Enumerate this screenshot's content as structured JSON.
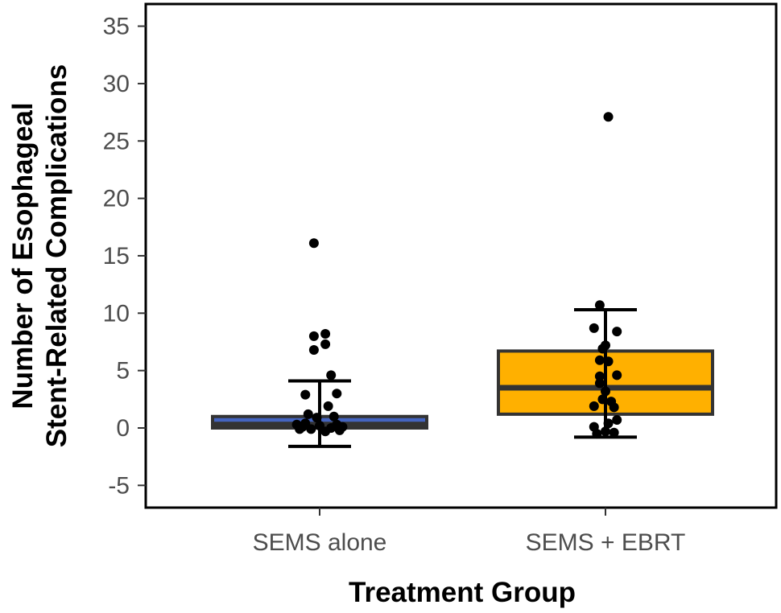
{
  "chart_data": {
    "type": "boxplot",
    "title": "",
    "xlabel": "Treatment Group",
    "ylabel": [
      "Number of Esophageal",
      "Stent-Related Complications"
    ],
    "ylim": [
      -6.8,
      37
    ],
    "yticks": [
      -5,
      0,
      5,
      10,
      15,
      20,
      25,
      30,
      35
    ],
    "grid": false,
    "legend": "none",
    "categories": [
      "SEMS alone",
      "SEMS + EBRT"
    ],
    "groups": [
      {
        "name": "SEMS alone",
        "color": "#4464c0",
        "box": {
          "q1": 0,
          "median": 0.3,
          "q3": 1,
          "whisker_low": -1.6,
          "whisker_high": 4.1
        },
        "points": [
          {
            "x": -0.02,
            "y": 16.1
          },
          {
            "x": 0.02,
            "y": 8.2
          },
          {
            "x": -0.02,
            "y": 8.0
          },
          {
            "x": 0.02,
            "y": 7.3
          },
          {
            "x": -0.02,
            "y": 6.8
          },
          {
            "x": 0.04,
            "y": 4.6
          },
          {
            "x": 0.06,
            "y": 3.0
          },
          {
            "x": -0.05,
            "y": 2.9
          },
          {
            "x": 0.03,
            "y": 1.9
          },
          {
            "x": -0.04,
            "y": 1.2
          },
          {
            "x": 0.05,
            "y": 1.0
          },
          {
            "x": -0.01,
            "y": 0.9
          },
          {
            "x": -0.05,
            "y": 0.4
          },
          {
            "x": 0.06,
            "y": 0.3
          },
          {
            "x": 0.0,
            "y": 0.2
          },
          {
            "x": -0.06,
            "y": 0.1
          },
          {
            "x": 0.04,
            "y": 0.0
          },
          {
            "x": -0.03,
            "y": -0.1
          },
          {
            "x": 0.07,
            "y": -0.2
          },
          {
            "x": -0.07,
            "y": -0.1
          },
          {
            "x": 0.02,
            "y": -0.3
          },
          {
            "x": 0.08,
            "y": 0.1
          },
          {
            "x": -0.08,
            "y": 0.3
          }
        ]
      },
      {
        "name": "SEMS + EBRT",
        "color": "#ffb000",
        "box": {
          "q1": 1.2,
          "median": 3.5,
          "q3": 6.7,
          "whisker_low": -0.8,
          "whisker_high": 10.3
        },
        "points": [
          {
            "x": 0.01,
            "y": 27.1
          },
          {
            "x": -0.02,
            "y": 10.7
          },
          {
            "x": -0.04,
            "y": 8.7
          },
          {
            "x": 0.04,
            "y": 8.4
          },
          {
            "x": 0.0,
            "y": 7.2
          },
          {
            "x": -0.01,
            "y": 6.9
          },
          {
            "x": -0.02,
            "y": 5.9
          },
          {
            "x": 0.01,
            "y": 5.8
          },
          {
            "x": -0.02,
            "y": 4.5
          },
          {
            "x": 0.04,
            "y": 4.6
          },
          {
            "x": -0.02,
            "y": 3.9
          },
          {
            "x": 0.0,
            "y": 3.2
          },
          {
            "x": -0.01,
            "y": 2.5
          },
          {
            "x": 0.02,
            "y": 2.3
          },
          {
            "x": -0.04,
            "y": 1.9
          },
          {
            "x": 0.03,
            "y": 1.8
          },
          {
            "x": 0.04,
            "y": 0.7
          },
          {
            "x": -0.04,
            "y": 0.1
          },
          {
            "x": 0.0,
            "y": -0.3
          },
          {
            "x": 0.03,
            "y": -0.4
          },
          {
            "x": -0.03,
            "y": -0.5
          },
          {
            "x": 0.01,
            "y": 0.4
          }
        ]
      }
    ]
  }
}
